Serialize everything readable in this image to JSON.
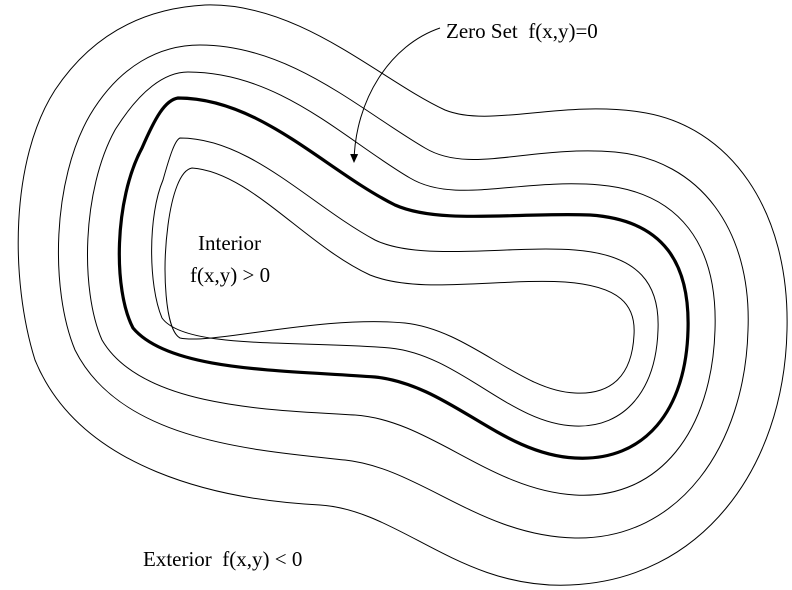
{
  "labels": {
    "zero_set": "Zero Set  f(x,y)=0",
    "interior_title": "Interior",
    "interior_condition": "f(x,y) > 0",
    "exterior": "Exterior  f(x,y) < 0"
  },
  "colors": {
    "background": "#ffffff",
    "stroke": "#000000"
  }
}
